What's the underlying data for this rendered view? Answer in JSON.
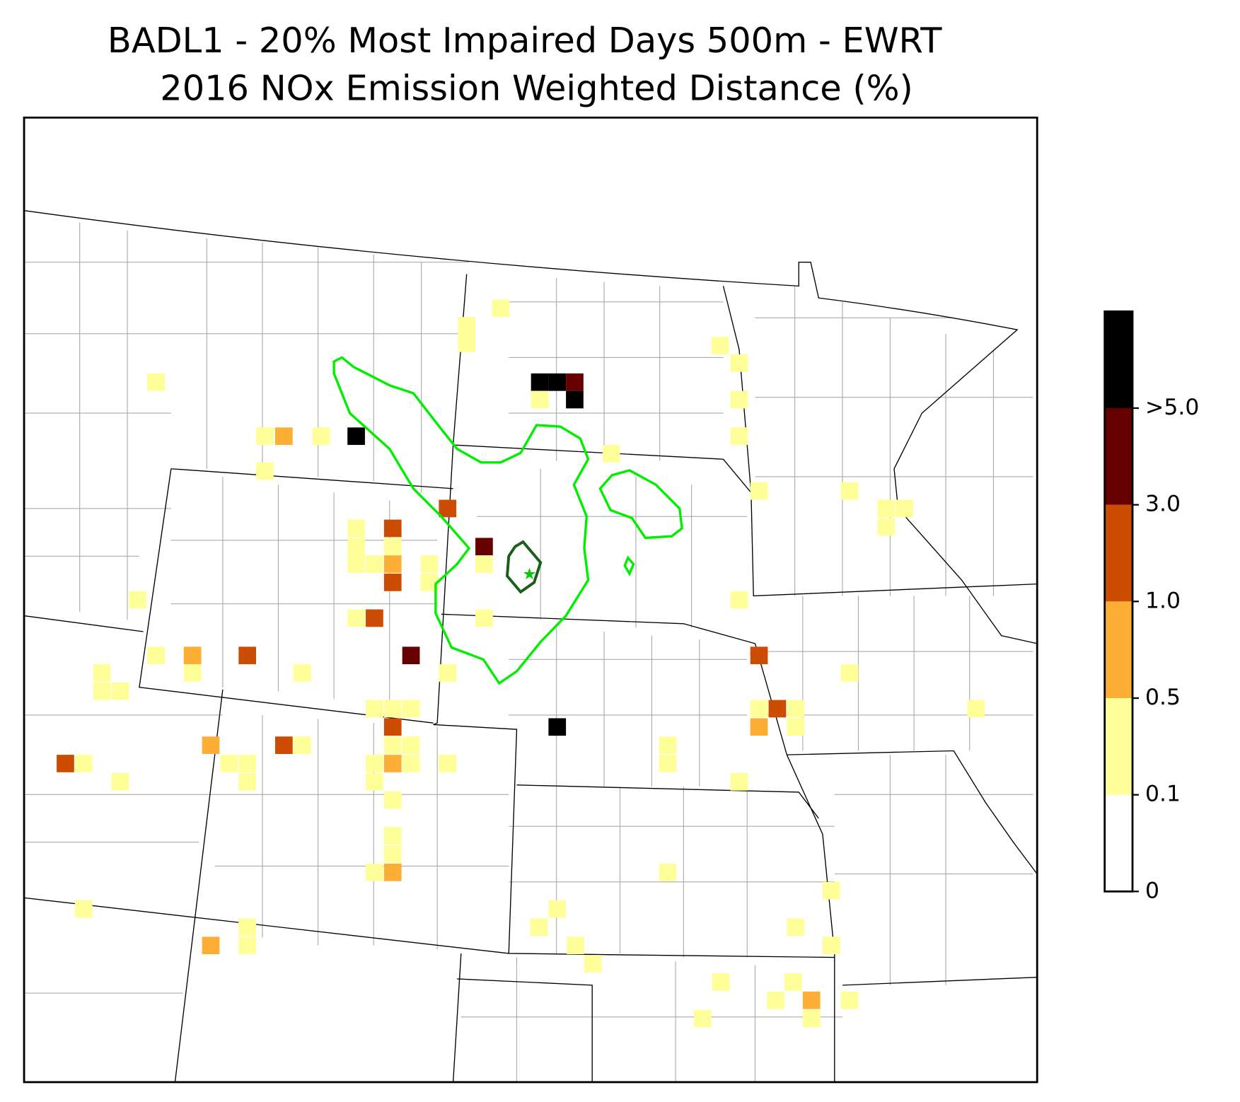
{
  "title": [
    "BADL1 - 20% Most Impaired Days 500m - EWRT",
    "2016 NOx Emission Weighted Distance (%)"
  ],
  "colorbar": {
    "colors": [
      "#ffffff",
      "#ffff99",
      "#fdae35",
      "#cc4c02",
      "#660000",
      "#000000"
    ],
    "ticks": [
      0,
      0.1,
      0.5,
      {
        "value": 1,
        "label": "1.0"
      },
      {
        "value": 3,
        "label": "3.0"
      },
      {
        "value": 5,
        "label": ">5.0"
      }
    ]
  }
}
